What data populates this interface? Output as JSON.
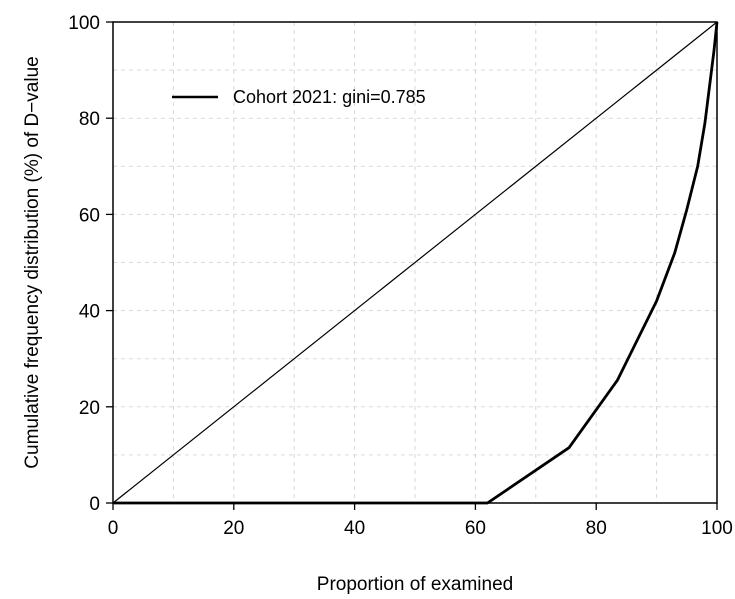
{
  "chart_data": {
    "type": "line",
    "title": "",
    "xlabel": "Proportion of examined",
    "ylabel": "Cumulative frequency distribution (%) of D−value",
    "xlim": [
      0,
      100
    ],
    "ylim": [
      0,
      100
    ],
    "xticks": [
      "0",
      "20",
      "40",
      "60",
      "80",
      "100"
    ],
    "yticks": [
      "0",
      "20",
      "40",
      "60",
      "80",
      "100"
    ],
    "grid": true,
    "legend_position": "top-left",
    "series": [
      {
        "name": "Cohort 2021: gini=0.785",
        "color": "#000000",
        "x": [
          0,
          62,
          75.5,
          83.5,
          90,
          93,
          95,
          96.8,
          98,
          98.8,
          99.5,
          100
        ],
        "y": [
          0,
          0,
          11.5,
          25.5,
          42,
          52,
          61,
          70,
          79,
          87,
          94,
          100
        ]
      },
      {
        "name": "",
        "color": "#000000",
        "x": [
          0,
          100
        ],
        "y": [
          0,
          100
        ]
      }
    ]
  }
}
